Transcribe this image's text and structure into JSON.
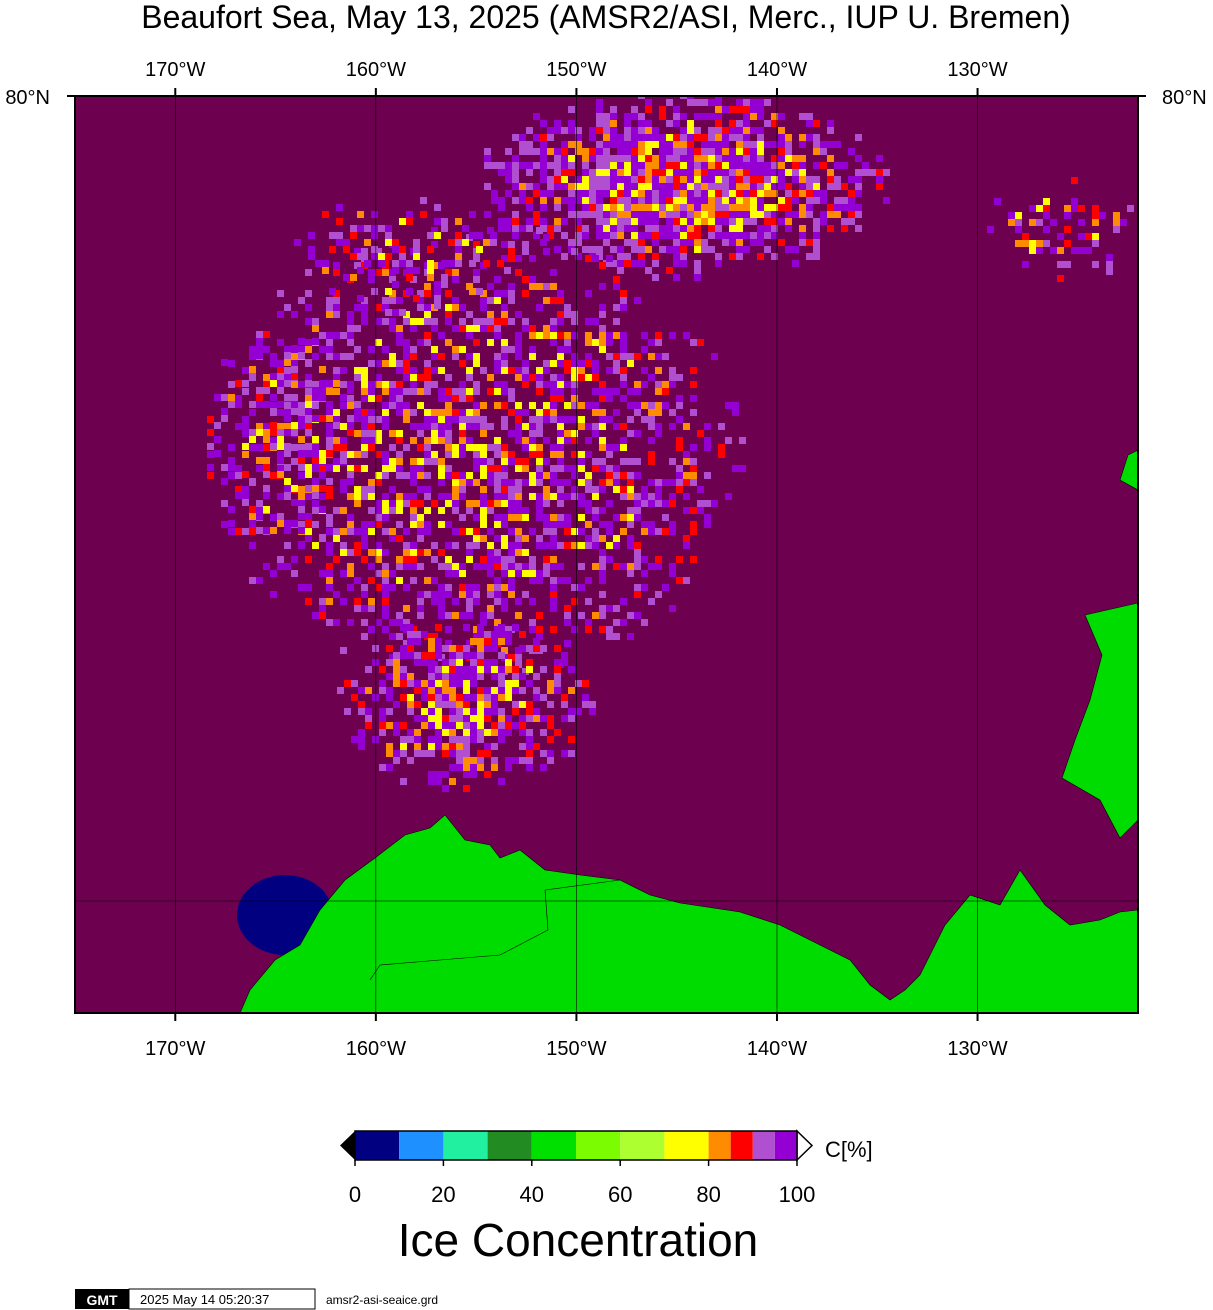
{
  "map": {
    "title": "Beaufort Sea, May 13, 2025 (AMSR2/ASI, Merc., IUP U. Bremen)",
    "xlim": [
      -175,
      -122
    ],
    "lon_ticks": [
      {
        "value": -170,
        "label": "170°W"
      },
      {
        "value": -160,
        "label": "160°W"
      },
      {
        "value": -150,
        "label": "150°W"
      },
      {
        "value": -140,
        "label": "140°W"
      },
      {
        "value": -130,
        "label": "130°W"
      }
    ],
    "lat_label": "80°N",
    "colorbar": {
      "bins": [
        0,
        10,
        20,
        30,
        40,
        50,
        60,
        70,
        80,
        85,
        90,
        95,
        100
      ],
      "colors": [
        "#000080",
        "#1e90ff",
        "#20f0a0",
        "#228b22",
        "#00e000",
        "#7cfc00",
        "#adff2f",
        "#ffff00",
        "#ff8c00",
        "#ff0000",
        "#b050d0",
        "#9400d3"
      ],
      "ticks": [
        0,
        20,
        40,
        60,
        80,
        100
      ],
      "unit": "C[%]",
      "label": "Ice Concentration"
    },
    "footer": {
      "logo": "GMT",
      "timestamp": "2025 May 14 05:20:37",
      "file": "amsr2-asi-seaice.grd"
    }
  }
}
